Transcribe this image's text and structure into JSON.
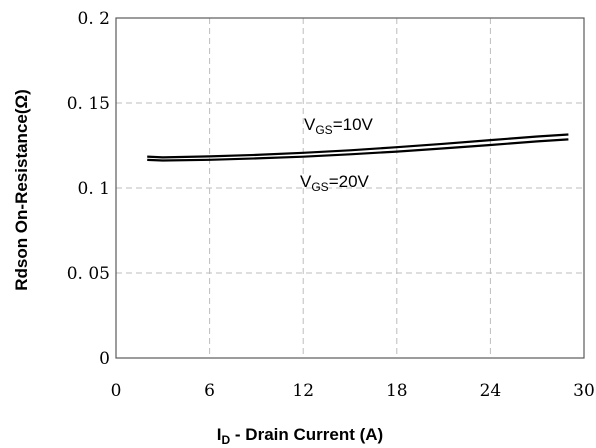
{
  "chart_data": {
    "type": "line",
    "xlabel_main": "I",
    "xlabel_sub": "D",
    "xlabel_rest": " - Drain Current (A)",
    "ylabel": "Rdson On-Resistance(Ω)",
    "xlim": [
      0,
      30
    ],
    "ylim": [
      0,
      0.2
    ],
    "x_ticks": [
      0,
      6,
      12,
      18,
      24,
      30
    ],
    "x_tick_labels": [
      "0",
      "6",
      "12",
      "18",
      "24",
      "30"
    ],
    "y_ticks": [
      0,
      0.05,
      0.1,
      0.15,
      0.2
    ],
    "y_tick_labels": [
      "0",
      "0. 05",
      "0. 1",
      "0. 15",
      "0. 2"
    ],
    "grid": true,
    "series": [
      {
        "label_main": "V",
        "label_sub": "GS",
        "label_rest": "=10V",
        "x": [
          2,
          3,
          6,
          9,
          12,
          15,
          18,
          21,
          24,
          27,
          29
        ],
        "y": [
          0.1185,
          0.118,
          0.1186,
          0.1195,
          0.1207,
          0.1222,
          0.124,
          0.126,
          0.1282,
          0.1303,
          0.1315
        ]
      },
      {
        "label_main": "V",
        "label_sub": "GS",
        "label_rest": "=20V",
        "x": [
          2,
          3,
          6,
          9,
          12,
          15,
          18,
          21,
          24,
          27,
          29
        ],
        "y": [
          0.1165,
          0.1162,
          0.1166,
          0.1174,
          0.1184,
          0.1198,
          0.1214,
          0.1233,
          0.1253,
          0.1274,
          0.1286
        ]
      }
    ]
  }
}
